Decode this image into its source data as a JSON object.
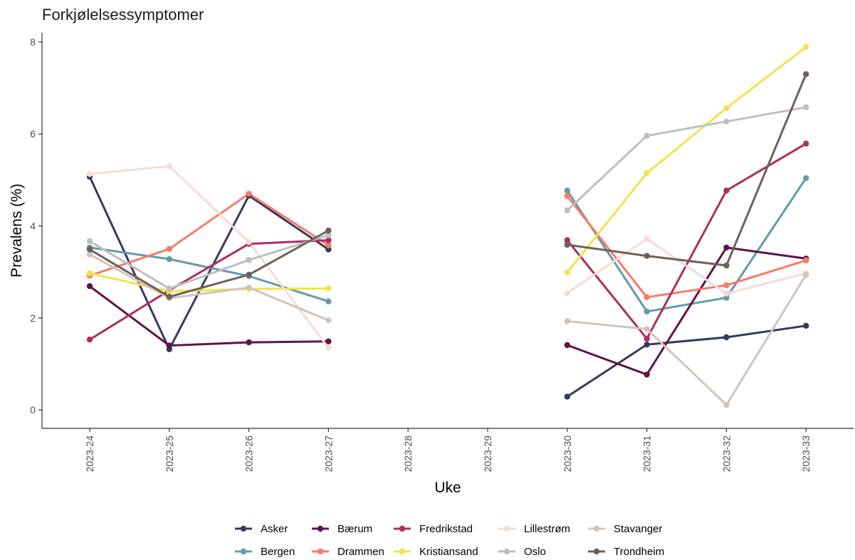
{
  "chart_data": {
    "type": "line",
    "title": "Forkjølelsessymptomer",
    "xlabel": "Uke",
    "ylabel": "Prevalens (%)",
    "categories": [
      "2023-24",
      "2023-25",
      "2023-26",
      "2023-27",
      "2023-28",
      "2023-29",
      "2023-30",
      "2023-31",
      "2023-32",
      "2023-33"
    ],
    "y_ticks": [
      0,
      2,
      4,
      6,
      8
    ],
    "ylim": [
      -0.4,
      8.2
    ],
    "grid": false,
    "legend_position": "bottom",
    "series": [
      {
        "name": "Asker",
        "color": "#353A5E",
        "values": [
          5.07,
          1.32,
          4.66,
          3.49,
          null,
          null,
          0.29,
          1.42,
          1.58,
          1.83
        ]
      },
      {
        "name": "Bergen",
        "color": "#6499AC",
        "values": [
          3.53,
          3.28,
          2.91,
          2.36,
          null,
          null,
          4.77,
          2.14,
          2.44,
          5.04
        ]
      },
      {
        "name": "Bærum",
        "color": "#5D1449",
        "values": [
          2.69,
          1.4,
          1.47,
          1.49,
          null,
          null,
          1.41,
          0.77,
          3.53,
          3.29
        ]
      },
      {
        "name": "Drammen",
        "color": "#FA7968",
        "values": [
          2.92,
          3.5,
          4.7,
          3.58,
          null,
          null,
          4.65,
          2.45,
          2.71,
          3.25
        ]
      },
      {
        "name": "Fredrikstad",
        "color": "#AE2D5E",
        "values": [
          1.53,
          2.6,
          3.61,
          3.69,
          null,
          null,
          3.69,
          1.55,
          4.77,
          5.79
        ]
      },
      {
        "name": "Kristiansand",
        "color": "#F4E24E",
        "values": [
          2.97,
          2.58,
          2.63,
          2.64,
          null,
          null,
          2.99,
          5.15,
          6.56,
          7.89
        ]
      },
      {
        "name": "Lillestrøm",
        "color": "#F4DCD6",
        "values": [
          5.13,
          5.3,
          3.65,
          1.35,
          null,
          null,
          2.54,
          3.72,
          2.53,
          2.97
        ]
      },
      {
        "name": "Oslo",
        "color": "#BEBEBE",
        "values": [
          3.67,
          2.64,
          3.26,
          3.8,
          null,
          null,
          4.34,
          5.96,
          6.27,
          6.58
        ]
      },
      {
        "name": "Stavanger",
        "color": "#D0C5BC",
        "values": [
          3.38,
          2.43,
          2.66,
          1.95,
          null,
          null,
          1.93,
          1.76,
          0.11,
          2.94
        ]
      },
      {
        "name": "Trondheim",
        "color": "#6F6059",
        "values": [
          3.49,
          2.46,
          2.94,
          3.9,
          null,
          null,
          3.59,
          3.35,
          3.14,
          7.3
        ]
      }
    ]
  }
}
